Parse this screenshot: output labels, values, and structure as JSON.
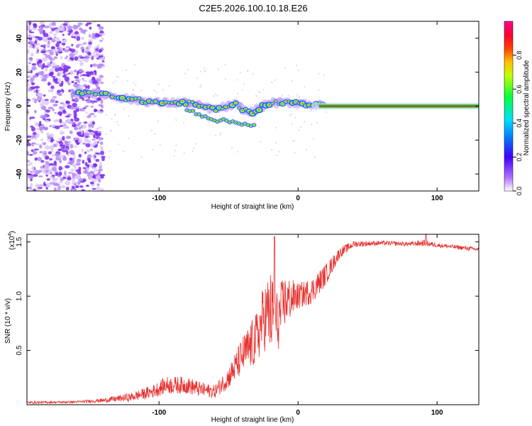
{
  "title": "C2E5.2026.100.10.18.E26",
  "chart_data": [
    {
      "type": "heatmap",
      "name": "spectrogram",
      "xlabel": "Height of straight line (km)",
      "ylabel": "Frequency (Hz)",
      "xlim": [
        -195,
        130
      ],
      "ylim": [
        -50,
        50
      ],
      "xticks": [
        -100,
        0,
        100
      ],
      "yticks": [
        -40,
        -20,
        0,
        20,
        40
      ],
      "colorbar": {
        "label": "Normalized spectral amplitude",
        "range": [
          0,
          1
        ],
        "ticks": [
          0.0,
          0.2,
          0.4,
          0.6,
          0.8
        ],
        "colors": [
          "#ffffff",
          "#8b00ff",
          "#0000ff",
          "#00c8ff",
          "#00ff00",
          "#ffff00",
          "#ff8000",
          "#ff0000",
          "#ff0080"
        ]
      },
      "features": [
        {
          "label": "broadband noise region",
          "x_range": [
            -195,
            -140
          ],
          "freq_range": [
            -50,
            50
          ],
          "amplitude": 0.15
        },
        {
          "label": "ridge",
          "x": [
            -160,
            -140,
            -120,
            -100,
            -80,
            -60,
            -45,
            -35,
            -20,
            0,
            20,
            130
          ],
          "freq": [
            8,
            7,
            4,
            2,
            2,
            -2,
            1,
            -4,
            2,
            2,
            0,
            0
          ]
        },
        {
          "label": "secondary branch",
          "x": [
            -80,
            -70,
            -60,
            -50,
            -40,
            -30
          ],
          "freq": [
            -2,
            -5,
            -8,
            -9,
            -10,
            -12
          ]
        },
        {
          "label": "steady line",
          "x_range": [
            20,
            130
          ],
          "freq": 0,
          "amplitude": 0.9
        }
      ]
    },
    {
      "type": "line",
      "name": "snr",
      "xlabel": "Height of straight line (km)",
      "ylabel": "SNR (10 * v/v)",
      "scale_label": "(x10",
      "scale_exp": "4",
      "scale_close": ")",
      "xlim": [
        -195,
        130
      ],
      "ylim": [
        0,
        1.57
      ],
      "xticks": [
        -100,
        0,
        100
      ],
      "yticks": [
        0.5,
        1.0,
        1.5
      ],
      "color": "#e8302e",
      "trend": {
        "x": [
          -195,
          -160,
          -140,
          -120,
          -105,
          -95,
          -80,
          -70,
          -60,
          -50,
          -40,
          -30,
          -25,
          -20,
          -15,
          -10,
          0,
          10,
          20,
          30,
          40,
          60,
          80,
          90,
          100,
          130
        ],
        "mean": [
          0.02,
          0.025,
          0.04,
          0.07,
          0.12,
          0.18,
          0.18,
          0.14,
          0.12,
          0.25,
          0.45,
          0.6,
          0.8,
          0.85,
          0.75,
          0.95,
          1.0,
          1.05,
          1.2,
          1.4,
          1.48,
          1.49,
          1.48,
          1.49,
          1.47,
          1.43
        ],
        "spread": [
          0.01,
          0.01,
          0.02,
          0.04,
          0.06,
          0.08,
          0.08,
          0.07,
          0.06,
          0.1,
          0.18,
          0.25,
          0.3,
          0.4,
          0.3,
          0.25,
          0.12,
          0.12,
          0.1,
          0.05,
          0.03,
          0.02,
          0.02,
          0.03,
          0.02,
          0.02
        ]
      },
      "peaks": [
        {
          "x": -17,
          "y": 1.55
        },
        {
          "x": 92,
          "y": 1.57
        }
      ]
    }
  ]
}
